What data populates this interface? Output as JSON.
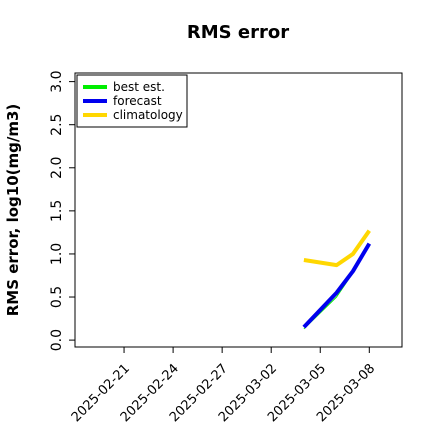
{
  "chart_data": {
    "type": "line",
    "title": "RMS error",
    "ylabel": "RMS error, log10(mg/m3)",
    "x": [
      "2025-03-04",
      "2025-03-06",
      "2025-03-07",
      "2025-03-08"
    ],
    "series": [
      {
        "name": "best est.",
        "color": "#00ee00",
        "values": [
          0.13,
          0.5,
          0.78,
          1.1
        ]
      },
      {
        "name": "forecast",
        "color": "#0000ee",
        "values": [
          0.15,
          0.55,
          0.8,
          1.12
        ]
      },
      {
        "name": "climatology",
        "color": "#ffd700",
        "values": [
          0.93,
          0.87,
          1.0,
          1.27
        ]
      }
    ],
    "xlim": [
      "2025-02-18",
      "2025-03-10"
    ],
    "xticks": [
      "2025-02-21",
      "2025-02-24",
      "2025-02-27",
      "2025-03-02",
      "2025-03-05",
      "2025-03-08"
    ],
    "xtick_colors": [
      "#000000",
      "#000000",
      "#228b22",
      "#000000",
      "#000000",
      "#000000"
    ],
    "ylim": [
      -0.08,
      3.1
    ],
    "yticks": [
      {
        "value": 0,
        "label": "0.0"
      },
      {
        "value": 0.5,
        "label": "0.5"
      },
      {
        "value": 1,
        "label": "1.0"
      },
      {
        "value": 1.5,
        "label": "1.5"
      },
      {
        "value": 2,
        "label": "2.0"
      },
      {
        "value": 2.5,
        "label": "2.5"
      },
      {
        "value": 3,
        "label": "3.0"
      }
    ],
    "legend": "top-left"
  }
}
